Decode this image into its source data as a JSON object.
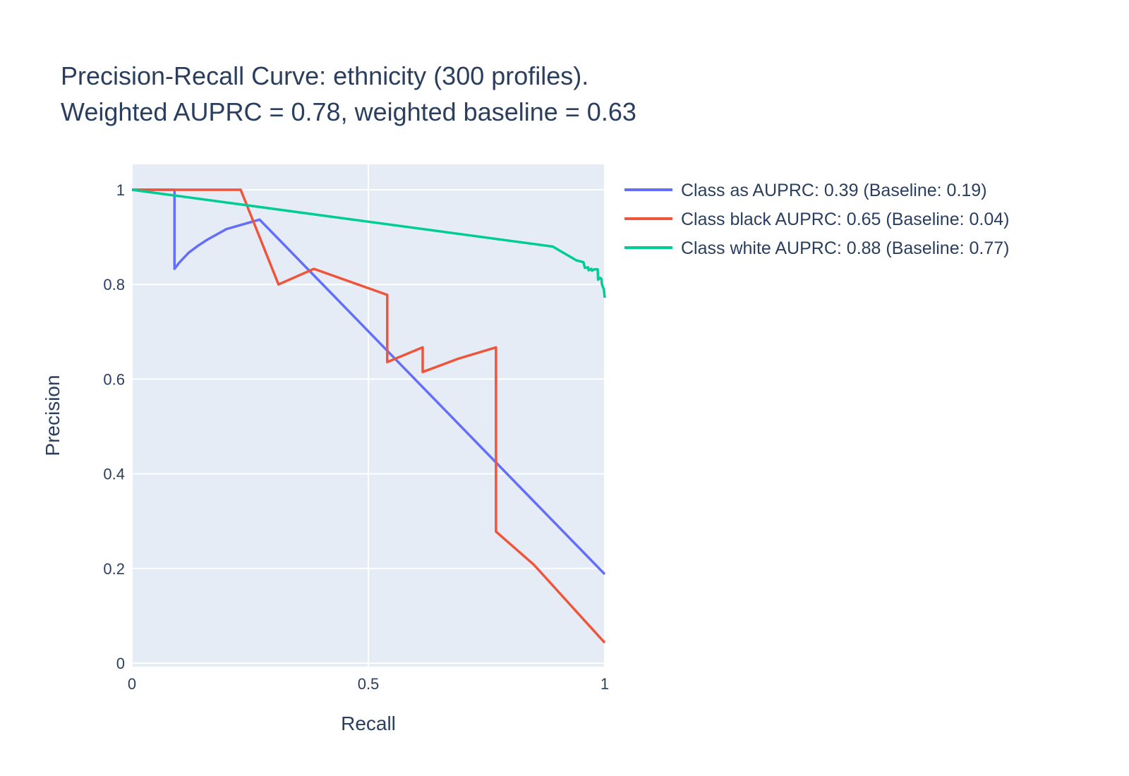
{
  "chart_data": {
    "type": "line",
    "title_lines": [
      "Precision-Recall Curve: ethnicity (300 profiles).",
      "Weighted AUPRC = 0.78, weighted baseline = 0.63"
    ],
    "xlabel": "Recall",
    "ylabel": "Precision",
    "xlim": [
      0,
      1
    ],
    "ylim": [
      0,
      1.05
    ],
    "x_ticks": [
      0,
      0.5,
      1
    ],
    "x_tick_labels": [
      "0",
      "0.5",
      "1"
    ],
    "y_ticks": [
      0,
      0.2,
      0.4,
      0.6,
      0.8,
      1
    ],
    "y_tick_labels": [
      "0",
      "0.2",
      "0.4",
      "0.6",
      "0.8",
      "1"
    ],
    "grid": true,
    "legend_position": "top-right-outside",
    "plot_background": "#e5ecf6",
    "series": [
      {
        "name": "Class as AUPRC: 0.39 (Baseline: 0.19)",
        "color": "#636efa",
        "points": [
          [
            0,
            1
          ],
          [
            0.09,
            1
          ],
          [
            0.09,
            0.833
          ],
          [
            0.1,
            0.846
          ],
          [
            0.12,
            0.867
          ],
          [
            0.14,
            0.882
          ],
          [
            0.16,
            0.895
          ],
          [
            0.2,
            0.917
          ],
          [
            0.27,
            0.937
          ],
          [
            1,
            0.188
          ]
        ]
      },
      {
        "name": "Class black AUPRC: 0.65 (Baseline: 0.04)",
        "color": "#ef553b",
        "points": [
          [
            0,
            1
          ],
          [
            0.23,
            1
          ],
          [
            0.31,
            0.8
          ],
          [
            0.385,
            0.833
          ],
          [
            0.54,
            0.778
          ],
          [
            0.54,
            0.636
          ],
          [
            0.615,
            0.667
          ],
          [
            0.615,
            0.615
          ],
          [
            0.69,
            0.643
          ],
          [
            0.77,
            0.667
          ],
          [
            0.77,
            0.278
          ],
          [
            0.85,
            0.208
          ],
          [
            1,
            0.043
          ]
        ]
      },
      {
        "name": "Class white AUPRC: 0.88 (Baseline: 0.77)",
        "color": "#00cc96",
        "points": [
          [
            0,
            1
          ],
          [
            0.89,
            0.88
          ],
          [
            0.94,
            0.851
          ],
          [
            0.955,
            0.847
          ],
          [
            0.958,
            0.835
          ],
          [
            0.965,
            0.836
          ],
          [
            0.966,
            0.83
          ],
          [
            0.972,
            0.833
          ],
          [
            0.973,
            0.829
          ],
          [
            0.978,
            0.832
          ],
          [
            0.985,
            0.832
          ],
          [
            0.986,
            0.81
          ],
          [
            0.99,
            0.814
          ],
          [
            0.993,
            0.812
          ],
          [
            0.994,
            0.8
          ],
          [
            0.998,
            0.79
          ],
          [
            1,
            0.772
          ]
        ]
      }
    ]
  }
}
